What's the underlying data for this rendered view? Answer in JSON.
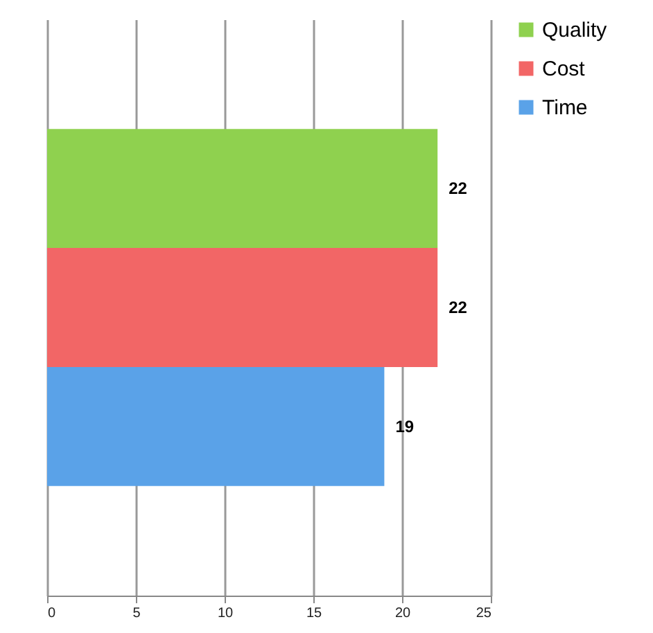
{
  "chart_data": {
    "type": "bar",
    "orientation": "horizontal",
    "categories": [
      null
    ],
    "series": [
      {
        "name": "Quality",
        "color": "#8fd14f",
        "values": [
          22
        ]
      },
      {
        "name": "Cost",
        "color": "#f26666",
        "values": [
          22
        ]
      },
      {
        "name": "Time",
        "color": "#5aa2e8",
        "values": [
          19
        ]
      }
    ],
    "xlim": [
      0,
      25
    ],
    "xticks": [
      0,
      5,
      10,
      15,
      20,
      25
    ],
    "grid": "x",
    "legend": "right",
    "data_labels": true
  }
}
